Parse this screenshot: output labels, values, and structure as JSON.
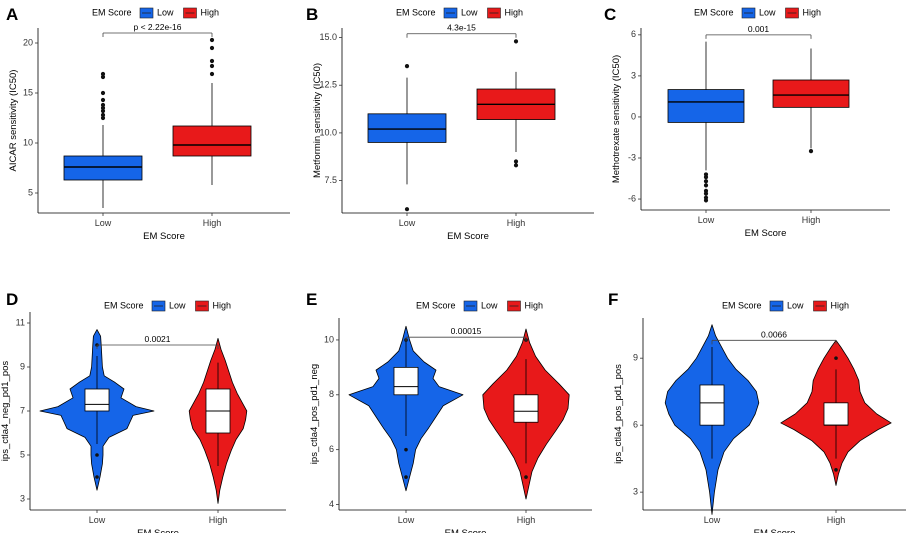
{
  "figure": {
    "legend_title": "EM Score",
    "group_labels": [
      "Low",
      "High"
    ],
    "colors": {
      "low": "#1565E8",
      "high": "#E8191A",
      "outlier": "#111111"
    }
  },
  "chart_data": [
    {
      "panel": "A",
      "type": "boxplot",
      "ylabel": "AICAR sensitivity (IC50)",
      "xlabel": "EM Score",
      "categories": [
        "Low",
        "High"
      ],
      "ylim": [
        3.0,
        21.5
      ],
      "yticks": [
        5,
        10,
        15,
        20
      ],
      "ytick_labels": [
        "5",
        "10",
        "15",
        "20"
      ],
      "annotation": "p < 2.22e-16",
      "bracket_y": 21.0,
      "groups": [
        {
          "name": "Low",
          "min": 3.5,
          "q1": 6.3,
          "median": 7.6,
          "q3": 8.7,
          "max": 11.8,
          "outliers": [
            12.5,
            12.8,
            13.2,
            13.5,
            13.8,
            14.3,
            15.0,
            16.6,
            16.9
          ]
        },
        {
          "name": "High",
          "min": 5.8,
          "q1": 8.7,
          "median": 9.8,
          "q3": 11.7,
          "max": 16.0,
          "outliers": [
            16.9,
            17.7,
            18.2,
            19.5,
            20.3
          ]
        }
      ]
    },
    {
      "panel": "B",
      "type": "boxplot",
      "ylabel": "Metformin sensitivity (IC50)",
      "xlabel": "EM Score",
      "categories": [
        "Low",
        "High"
      ],
      "ylim": [
        5.8,
        15.5
      ],
      "yticks": [
        7.5,
        10.0,
        12.5,
        15.0
      ],
      "ytick_labels": [
        "7.5",
        "10.0",
        "12.5",
        "15.0"
      ],
      "annotation": "4.3e-15",
      "bracket_y": 15.2,
      "groups": [
        {
          "name": "Low",
          "min": 7.3,
          "q1": 9.5,
          "median": 10.2,
          "q3": 11.0,
          "max": 12.9,
          "outliers": [
            6.0,
            13.5
          ]
        },
        {
          "name": "High",
          "min": 9.0,
          "q1": 10.7,
          "median": 11.5,
          "q3": 12.3,
          "max": 13.2,
          "outliers": [
            8.3,
            8.5,
            14.8
          ]
        }
      ]
    },
    {
      "panel": "C",
      "type": "boxplot",
      "ylabel": "Methotrexate sensitivity (IC50)",
      "xlabel": "EM Score",
      "categories": [
        "Low",
        "High"
      ],
      "ylim": [
        -6.8,
        6.5
      ],
      "yticks": [
        -6,
        -3,
        0,
        3,
        6
      ],
      "ytick_labels": [
        "-6",
        "-3",
        "0",
        "3",
        "6"
      ],
      "annotation": "0.001",
      "bracket_y": 6.0,
      "groups": [
        {
          "name": "Low",
          "min": -3.9,
          "q1": -0.4,
          "median": 1.1,
          "q3": 2.0,
          "max": 5.5,
          "outliers": [
            -4.2,
            -4.4,
            -4.7,
            -5.0,
            -5.4,
            -5.6,
            -5.9,
            -6.1
          ]
        },
        {
          "name": "High",
          "min": -2.3,
          "q1": 0.7,
          "median": 1.6,
          "q3": 2.7,
          "max": 5.0,
          "outliers": [
            -2.5
          ]
        }
      ]
    },
    {
      "panel": "D",
      "type": "violin",
      "ylabel": "ips_ctla4_neg_pd1_pos",
      "xlabel": "EM Score",
      "categories": [
        "Low",
        "High"
      ],
      "ylim": [
        2.5,
        11.5
      ],
      "yticks": [
        3,
        5,
        7,
        9,
        11
      ],
      "ytick_labels": [
        "3",
        "5",
        "7",
        "9",
        "11"
      ],
      "annotation": "0.0021",
      "bracket_y": 10.0,
      "groups": [
        {
          "name": "Low",
          "vmin": 3.4,
          "vmax": 10.7,
          "density": [
            [
              3.4,
              0.0
            ],
            [
              4.0,
              0.05
            ],
            [
              4.6,
              0.09
            ],
            [
              5.0,
              0.1
            ],
            [
              5.4,
              0.1
            ],
            [
              5.8,
              0.2
            ],
            [
              6.2,
              0.5
            ],
            [
              6.5,
              0.55
            ],
            [
              6.8,
              0.6
            ],
            [
              7.0,
              0.95
            ],
            [
              7.2,
              0.65
            ],
            [
              7.6,
              0.4
            ],
            [
              8.0,
              0.45
            ],
            [
              8.3,
              0.3
            ],
            [
              8.6,
              0.12
            ],
            [
              9.0,
              0.09
            ],
            [
              9.5,
              0.08
            ],
            [
              10.0,
              0.07
            ],
            [
              10.4,
              0.06
            ],
            [
              10.7,
              0.0
            ]
          ],
          "q1": 7.0,
          "median": 7.3,
          "q3": 8.0,
          "wmin": 5.5,
          "wmax": 9.5,
          "outliers": [
            4.0,
            5.0,
            10.0
          ]
        },
        {
          "name": "High",
          "vmin": 2.8,
          "vmax": 10.3,
          "density": [
            [
              2.8,
              0.0
            ],
            [
              3.4,
              0.03
            ],
            [
              4.0,
              0.08
            ],
            [
              4.6,
              0.14
            ],
            [
              5.2,
              0.22
            ],
            [
              5.7,
              0.3
            ],
            [
              6.2,
              0.42
            ],
            [
              6.6,
              0.46
            ],
            [
              7.0,
              0.48
            ],
            [
              7.4,
              0.4
            ],
            [
              7.8,
              0.32
            ],
            [
              8.3,
              0.24
            ],
            [
              8.8,
              0.18
            ],
            [
              9.3,
              0.12
            ],
            [
              9.8,
              0.05
            ],
            [
              10.3,
              0.0
            ]
          ],
          "q1": 6.0,
          "median": 7.0,
          "q3": 8.0,
          "wmin": 4.5,
          "wmax": 9.2,
          "outliers": []
        }
      ]
    },
    {
      "panel": "E",
      "type": "violin",
      "ylabel": "ips_ctla4_pos_pd1_neg",
      "xlabel": "EM Score",
      "categories": [
        "Low",
        "High"
      ],
      "ylim": [
        3.8,
        10.8
      ],
      "yticks": [
        4,
        6,
        8,
        10
      ],
      "ytick_labels": [
        "4",
        "6",
        "8",
        "10"
      ],
      "annotation": "0.00015",
      "bracket_y": 10.1,
      "groups": [
        {
          "name": "Low",
          "vmin": 4.5,
          "vmax": 10.5,
          "density": [
            [
              4.5,
              0.0
            ],
            [
              5.0,
              0.06
            ],
            [
              5.5,
              0.12
            ],
            [
              6.0,
              0.16
            ],
            [
              6.4,
              0.25
            ],
            [
              6.8,
              0.38
            ],
            [
              7.2,
              0.5
            ],
            [
              7.6,
              0.62
            ],
            [
              8.0,
              0.95
            ],
            [
              8.3,
              0.55
            ],
            [
              8.6,
              0.45
            ],
            [
              8.9,
              0.5
            ],
            [
              9.2,
              0.3
            ],
            [
              9.6,
              0.12
            ],
            [
              10.0,
              0.06
            ],
            [
              10.5,
              0.0
            ]
          ],
          "q1": 8.0,
          "median": 8.3,
          "q3": 9.0,
          "wmin": 6.5,
          "wmax": 10.0,
          "outliers": [
            5.0,
            6.0,
            10.0
          ]
        },
        {
          "name": "High",
          "vmin": 4.2,
          "vmax": 10.4,
          "density": [
            [
              4.2,
              0.0
            ],
            [
              4.7,
              0.05
            ],
            [
              5.2,
              0.1
            ],
            [
              5.7,
              0.2
            ],
            [
              6.2,
              0.34
            ],
            [
              6.7,
              0.5
            ],
            [
              7.1,
              0.62
            ],
            [
              7.5,
              0.7
            ],
            [
              8.0,
              0.72
            ],
            [
              8.4,
              0.55
            ],
            [
              8.9,
              0.32
            ],
            [
              9.4,
              0.16
            ],
            [
              9.9,
              0.06
            ],
            [
              10.4,
              0.0
            ]
          ],
          "q1": 7.0,
          "median": 7.4,
          "q3": 8.0,
          "wmin": 5.5,
          "wmax": 9.3,
          "outliers": [
            5.0,
            10.0
          ]
        }
      ]
    },
    {
      "panel": "F",
      "type": "violin",
      "ylabel": "ips_ctla4_pos_pd1_pos",
      "xlabel": "EM Score",
      "categories": [
        "Low",
        "High"
      ],
      "ylim": [
        2.2,
        10.8
      ],
      "yticks": [
        3,
        6,
        9
      ],
      "ytick_labels": [
        "3",
        "6",
        "9"
      ],
      "annotation": "0.0066",
      "bracket_y": 9.8,
      "groups": [
        {
          "name": "Low",
          "vmin": 2.0,
          "vmax": 10.5,
          "density": [
            [
              2.0,
              0.0
            ],
            [
              3.0,
              0.04
            ],
            [
              4.0,
              0.1
            ],
            [
              4.8,
              0.2
            ],
            [
              5.4,
              0.36
            ],
            [
              6.0,
              0.62
            ],
            [
              6.5,
              0.72
            ],
            [
              7.0,
              0.78
            ],
            [
              7.5,
              0.74
            ],
            [
              8.0,
              0.6
            ],
            [
              8.5,
              0.4
            ],
            [
              9.0,
              0.26
            ],
            [
              9.5,
              0.16
            ],
            [
              10.0,
              0.06
            ],
            [
              10.5,
              0.0
            ]
          ],
          "q1": 6.0,
          "median": 7.0,
          "q3": 7.8,
          "wmin": 4.5,
          "wmax": 9.5,
          "outliers": []
        },
        {
          "name": "High",
          "vmin": 3.3,
          "vmax": 9.8,
          "density": [
            [
              3.3,
              0.0
            ],
            [
              3.8,
              0.04
            ],
            [
              4.3,
              0.1
            ],
            [
              4.8,
              0.2
            ],
            [
              5.3,
              0.4
            ],
            [
              5.8,
              0.7
            ],
            [
              6.1,
              0.92
            ],
            [
              6.5,
              0.68
            ],
            [
              7.0,
              0.48
            ],
            [
              7.5,
              0.4
            ],
            [
              8.0,
              0.38
            ],
            [
              8.5,
              0.3
            ],
            [
              9.0,
              0.2
            ],
            [
              9.5,
              0.08
            ],
            [
              9.8,
              0.0
            ]
          ],
          "q1": 6.0,
          "median": 6.0,
          "q3": 7.0,
          "wmin": 4.5,
          "wmax": 8.5,
          "outliers": [
            4.0,
            9.0
          ]
        }
      ]
    }
  ]
}
